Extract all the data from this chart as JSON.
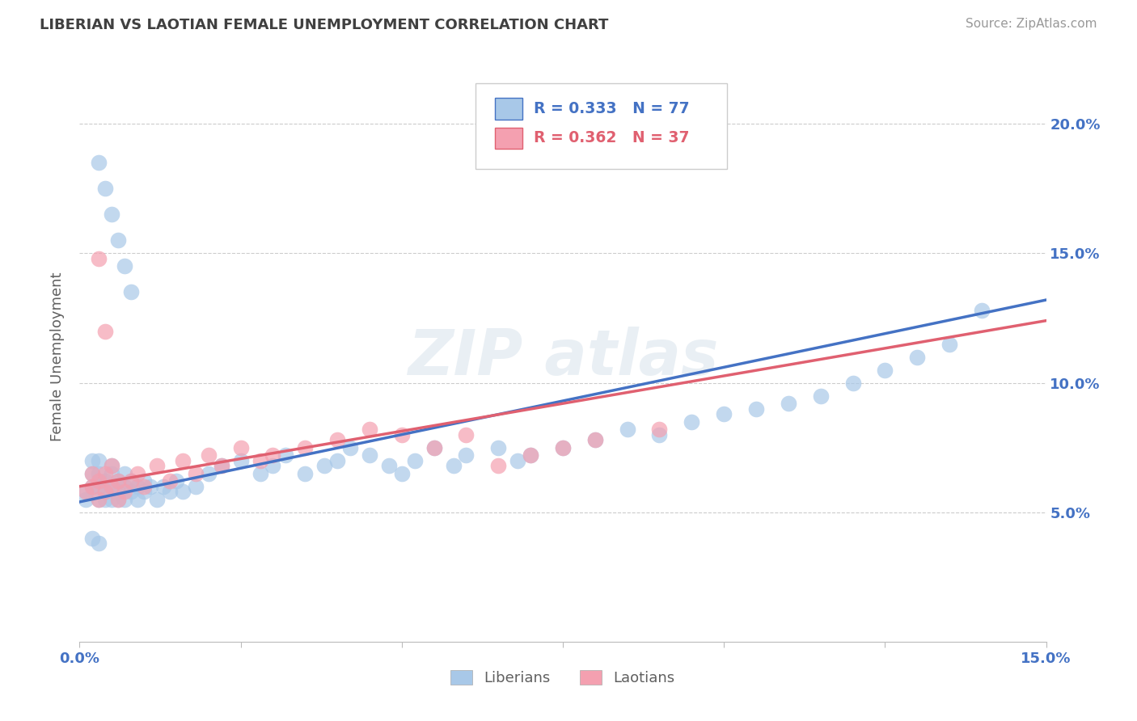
{
  "title": "LIBERIAN VS LAOTIAN FEMALE UNEMPLOYMENT CORRELATION CHART",
  "source_text": "Source: ZipAtlas.com",
  "ylabel": "Female Unemployment",
  "xmin": 0.0,
  "xmax": 0.15,
  "ymin": 0.0,
  "ymax": 0.22,
  "liberian_r": 0.333,
  "liberian_n": 77,
  "laotian_r": 0.362,
  "laotian_n": 37,
  "liberian_color": "#a8c8e8",
  "laotian_color": "#f4a0b0",
  "liberian_line_color": "#4472c4",
  "laotian_line_color": "#e06070",
  "title_color": "#404040",
  "axis_label_color": "#4472c4",
  "ytick_values": [
    0.05,
    0.1,
    0.15,
    0.2
  ],
  "xtick_positions": [
    0.0,
    0.025,
    0.05,
    0.075,
    0.1,
    0.125,
    0.15
  ],
  "grid_color": "#cccccc",
  "background_color": "#ffffff",
  "liberian_trend_start_y": 0.054,
  "liberian_trend_end_y": 0.132,
  "laotian_trend_start_y": 0.06,
  "laotian_trend_end_y": 0.124,
  "lib_x": [
    0.001,
    0.001,
    0.002,
    0.002,
    0.002,
    0.003,
    0.003,
    0.003,
    0.003,
    0.004,
    0.004,
    0.004,
    0.005,
    0.005,
    0.005,
    0.005,
    0.006,
    0.006,
    0.006,
    0.007,
    0.007,
    0.007,
    0.008,
    0.008,
    0.009,
    0.009,
    0.01,
    0.01,
    0.011,
    0.012,
    0.013,
    0.014,
    0.015,
    0.016,
    0.018,
    0.02,
    0.022,
    0.025,
    0.028,
    0.03,
    0.032,
    0.035,
    0.038,
    0.04,
    0.042,
    0.045,
    0.048,
    0.05,
    0.052,
    0.055,
    0.058,
    0.06,
    0.065,
    0.068,
    0.07,
    0.075,
    0.08,
    0.085,
    0.09,
    0.095,
    0.1,
    0.105,
    0.11,
    0.115,
    0.12,
    0.125,
    0.13,
    0.135,
    0.14,
    0.003,
    0.004,
    0.005,
    0.006,
    0.007,
    0.008,
    0.002,
    0.003
  ],
  "lib_y": [
    0.055,
    0.058,
    0.06,
    0.065,
    0.07,
    0.055,
    0.06,
    0.065,
    0.07,
    0.055,
    0.058,
    0.062,
    0.055,
    0.06,
    0.065,
    0.068,
    0.055,
    0.058,
    0.062,
    0.055,
    0.06,
    0.065,
    0.058,
    0.062,
    0.055,
    0.06,
    0.058,
    0.062,
    0.06,
    0.055,
    0.06,
    0.058,
    0.062,
    0.058,
    0.06,
    0.065,
    0.068,
    0.07,
    0.065,
    0.068,
    0.072,
    0.065,
    0.068,
    0.07,
    0.075,
    0.072,
    0.068,
    0.065,
    0.07,
    0.075,
    0.068,
    0.072,
    0.075,
    0.07,
    0.072,
    0.075,
    0.078,
    0.082,
    0.08,
    0.085,
    0.088,
    0.09,
    0.092,
    0.095,
    0.1,
    0.105,
    0.11,
    0.115,
    0.128,
    0.185,
    0.175,
    0.165,
    0.155,
    0.145,
    0.135,
    0.04,
    0.038
  ],
  "lao_x": [
    0.001,
    0.002,
    0.002,
    0.003,
    0.003,
    0.004,
    0.004,
    0.005,
    0.005,
    0.006,
    0.006,
    0.007,
    0.008,
    0.009,
    0.01,
    0.012,
    0.014,
    0.016,
    0.018,
    0.02,
    0.022,
    0.025,
    0.028,
    0.03,
    0.035,
    0.04,
    0.045,
    0.05,
    0.055,
    0.06,
    0.065,
    0.07,
    0.075,
    0.08,
    0.09,
    0.003,
    0.004
  ],
  "lao_y": [
    0.058,
    0.06,
    0.065,
    0.055,
    0.062,
    0.058,
    0.065,
    0.06,
    0.068,
    0.055,
    0.062,
    0.058,
    0.062,
    0.065,
    0.06,
    0.068,
    0.062,
    0.07,
    0.065,
    0.072,
    0.068,
    0.075,
    0.07,
    0.072,
    0.075,
    0.078,
    0.082,
    0.08,
    0.075,
    0.08,
    0.068,
    0.072,
    0.075,
    0.078,
    0.082,
    0.148,
    0.12
  ]
}
